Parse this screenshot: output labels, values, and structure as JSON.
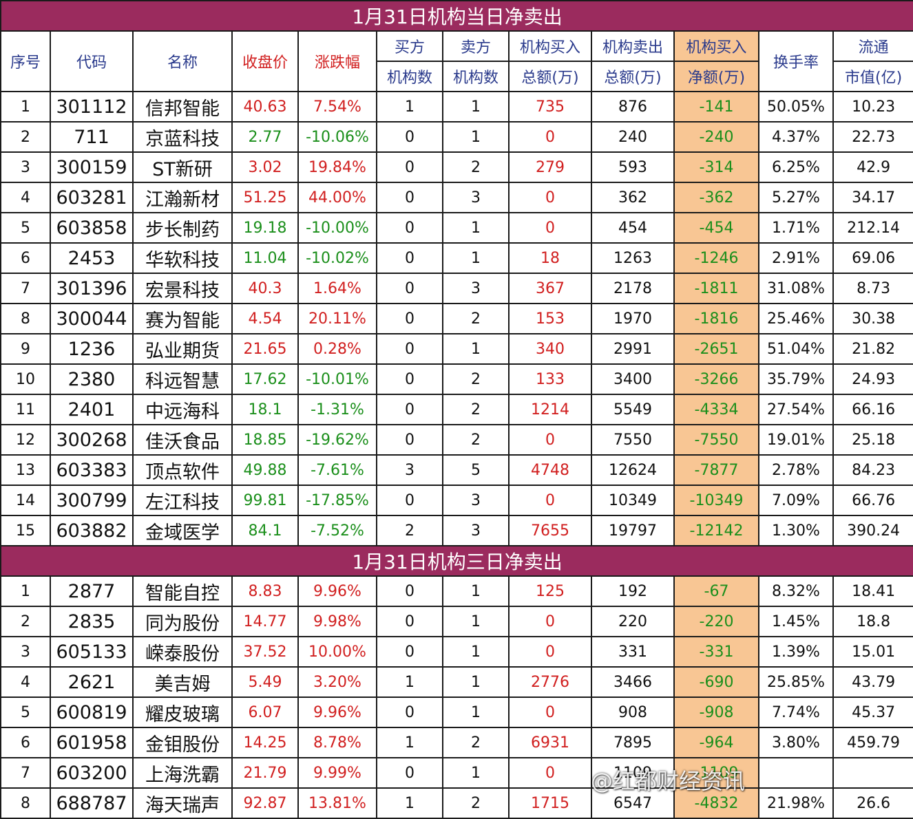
{
  "section1_title": "1月31日机构当日净卖出",
  "section2_title": "1月31日机构三日净卖出",
  "headers": {
    "seq": "序号",
    "code": "代码",
    "name": "名称",
    "close": "收盘价",
    "change": "涨跌幅",
    "buyers_1": "买方",
    "buyers_2": "机构数",
    "sellers_1": "卖方",
    "sellers_2": "机构数",
    "inst_buy_1": "机构买入",
    "inst_buy_2": "总额(万)",
    "inst_sell_1": "机构卖出",
    "inst_sell_2": "总额(万)",
    "net_1": "机构买入",
    "net_2": "净额(万)",
    "turnover": "换手率",
    "mcap_1": "流通",
    "mcap_2": "市值(亿)"
  },
  "section1_rows": [
    {
      "seq": "1",
      "code": "301112",
      "name": "信邦智能",
      "close": "40.63",
      "change": "7.54%",
      "dir": "up",
      "buyers": "1",
      "sellers": "1",
      "buy_amt": "735",
      "sell_amt": "876",
      "net": "-141",
      "turnover": "50.05%",
      "mcap": "10.23"
    },
    {
      "seq": "2",
      "code": "711",
      "name": "京蓝科技",
      "close": "2.77",
      "change": "-10.06%",
      "dir": "down",
      "buyers": "0",
      "sellers": "1",
      "buy_amt": "0",
      "sell_amt": "240",
      "net": "-240",
      "turnover": "4.37%",
      "mcap": "22.73"
    },
    {
      "seq": "3",
      "code": "300159",
      "name": "ST新研",
      "close": "3.02",
      "change": "19.84%",
      "dir": "up",
      "buyers": "0",
      "sellers": "2",
      "buy_amt": "279",
      "sell_amt": "593",
      "net": "-314",
      "turnover": "6.25%",
      "mcap": "42.9"
    },
    {
      "seq": "4",
      "code": "603281",
      "name": "江瀚新材",
      "close": "51.25",
      "change": "44.00%",
      "dir": "up",
      "buyers": "0",
      "sellers": "3",
      "buy_amt": "0",
      "sell_amt": "362",
      "net": "-362",
      "turnover": "5.27%",
      "mcap": "34.17"
    },
    {
      "seq": "5",
      "code": "603858",
      "name": "步长制药",
      "close": "19.18",
      "change": "-10.00%",
      "dir": "down",
      "buyers": "0",
      "sellers": "1",
      "buy_amt": "0",
      "sell_amt": "454",
      "net": "-454",
      "turnover": "1.71%",
      "mcap": "212.14"
    },
    {
      "seq": "6",
      "code": "2453",
      "name": "华软科技",
      "close": "11.04",
      "change": "-10.02%",
      "dir": "down",
      "buyers": "0",
      "sellers": "1",
      "buy_amt": "18",
      "sell_amt": "1263",
      "net": "-1246",
      "turnover": "2.91%",
      "mcap": "69.06"
    },
    {
      "seq": "7",
      "code": "301396",
      "name": "宏景科技",
      "close": "40.3",
      "change": "1.64%",
      "dir": "up",
      "buyers": "0",
      "sellers": "3",
      "buy_amt": "367",
      "sell_amt": "2178",
      "net": "-1811",
      "turnover": "31.08%",
      "mcap": "8.73"
    },
    {
      "seq": "8",
      "code": "300044",
      "name": "赛为智能",
      "close": "4.54",
      "change": "20.11%",
      "dir": "up",
      "buyers": "0",
      "sellers": "2",
      "buy_amt": "153",
      "sell_amt": "1970",
      "net": "-1816",
      "turnover": "25.46%",
      "mcap": "30.38"
    },
    {
      "seq": "9",
      "code": "1236",
      "name": "弘业期货",
      "close": "21.65",
      "change": "0.28%",
      "dir": "up",
      "buyers": "0",
      "sellers": "1",
      "buy_amt": "340",
      "sell_amt": "2991",
      "net": "-2651",
      "turnover": "51.04%",
      "mcap": "21.82"
    },
    {
      "seq": "10",
      "code": "2380",
      "name": "科远智慧",
      "close": "17.62",
      "change": "-10.01%",
      "dir": "down",
      "buyers": "0",
      "sellers": "2",
      "buy_amt": "133",
      "sell_amt": "3400",
      "net": "-3266",
      "turnover": "35.79%",
      "mcap": "24.93"
    },
    {
      "seq": "11",
      "code": "2401",
      "name": "中远海科",
      "close": "18.1",
      "change": "-1.31%",
      "dir": "down",
      "buyers": "0",
      "sellers": "2",
      "buy_amt": "1214",
      "sell_amt": "5549",
      "net": "-4334",
      "turnover": "27.54%",
      "mcap": "66.16"
    },
    {
      "seq": "12",
      "code": "300268",
      "name": "佳沃食品",
      "close": "18.85",
      "change": "-19.62%",
      "dir": "down",
      "buyers": "0",
      "sellers": "2",
      "buy_amt": "0",
      "sell_amt": "7550",
      "net": "-7550",
      "turnover": "19.01%",
      "mcap": "25.18"
    },
    {
      "seq": "13",
      "code": "603383",
      "name": "顶点软件",
      "close": "49.88",
      "change": "-7.61%",
      "dir": "down",
      "buyers": "3",
      "sellers": "5",
      "buy_amt": "4748",
      "sell_amt": "12624",
      "net": "-7877",
      "turnover": "2.78%",
      "mcap": "84.23"
    },
    {
      "seq": "14",
      "code": "300799",
      "name": "左江科技",
      "close": "99.81",
      "change": "-17.85%",
      "dir": "down",
      "buyers": "0",
      "sellers": "3",
      "buy_amt": "0",
      "sell_amt": "10349",
      "net": "-10349",
      "turnover": "7.09%",
      "mcap": "66.76"
    },
    {
      "seq": "15",
      "code": "603882",
      "name": "金域医学",
      "close": "84.1",
      "change": "-7.52%",
      "dir": "down",
      "buyers": "2",
      "sellers": "3",
      "buy_amt": "7655",
      "sell_amt": "19797",
      "net": "-12142",
      "turnover": "1.30%",
      "mcap": "390.24"
    }
  ],
  "section2_rows": [
    {
      "seq": "1",
      "code": "2877",
      "name": "智能自控",
      "close": "8.83",
      "change": "9.96%",
      "dir": "up",
      "buyers": "0",
      "sellers": "1",
      "buy_amt": "125",
      "sell_amt": "192",
      "net": "-67",
      "turnover": "8.32%",
      "mcap": "18.41"
    },
    {
      "seq": "2",
      "code": "2835",
      "name": "同为股份",
      "close": "14.77",
      "change": "9.98%",
      "dir": "up",
      "buyers": "0",
      "sellers": "1",
      "buy_amt": "0",
      "sell_amt": "220",
      "net": "-220",
      "turnover": "1.45%",
      "mcap": "18.8"
    },
    {
      "seq": "3",
      "code": "605133",
      "name": "嵘泰股份",
      "close": "37.52",
      "change": "10.00%",
      "dir": "up",
      "buyers": "0",
      "sellers": "1",
      "buy_amt": "0",
      "sell_amt": "331",
      "net": "-331",
      "turnover": "1.39%",
      "mcap": "15.01"
    },
    {
      "seq": "4",
      "code": "2621",
      "name": "美吉姆",
      "close": "5.49",
      "change": "3.20%",
      "dir": "up",
      "buyers": "1",
      "sellers": "1",
      "buy_amt": "2776",
      "sell_amt": "3466",
      "net": "-690",
      "turnover": "25.85%",
      "mcap": "43.79"
    },
    {
      "seq": "5",
      "code": "600819",
      "name": "耀皮玻璃",
      "close": "6.07",
      "change": "9.96%",
      "dir": "up",
      "buyers": "0",
      "sellers": "1",
      "buy_amt": "0",
      "sell_amt": "908",
      "net": "-908",
      "turnover": "7.74%",
      "mcap": "45.37"
    },
    {
      "seq": "6",
      "code": "601958",
      "name": "金钼股份",
      "close": "14.25",
      "change": "8.78%",
      "dir": "up",
      "buyers": "1",
      "sellers": "2",
      "buy_amt": "6931",
      "sell_amt": "7895",
      "net": "-964",
      "turnover": "3.80%",
      "mcap": "459.79"
    },
    {
      "seq": "7",
      "code": "603200",
      "name": "上海洗霸",
      "close": "21.79",
      "change": "9.99%",
      "dir": "up",
      "buyers": "0",
      "sellers": "1",
      "buy_amt": "0",
      "sell_amt": "1109",
      "net": "-1109",
      "turnover": "",
      "mcap": ""
    },
    {
      "seq": "8",
      "code": "688787",
      "name": "海天瑞声",
      "close": "92.87",
      "change": "13.81%",
      "dir": "up",
      "buyers": "1",
      "sellers": "2",
      "buy_amt": "1715",
      "sell_amt": "6547",
      "net": "-4832",
      "turnover": "21.98%",
      "mcap": "26.6"
    }
  ],
  "watermark": "@红都财经资讯"
}
